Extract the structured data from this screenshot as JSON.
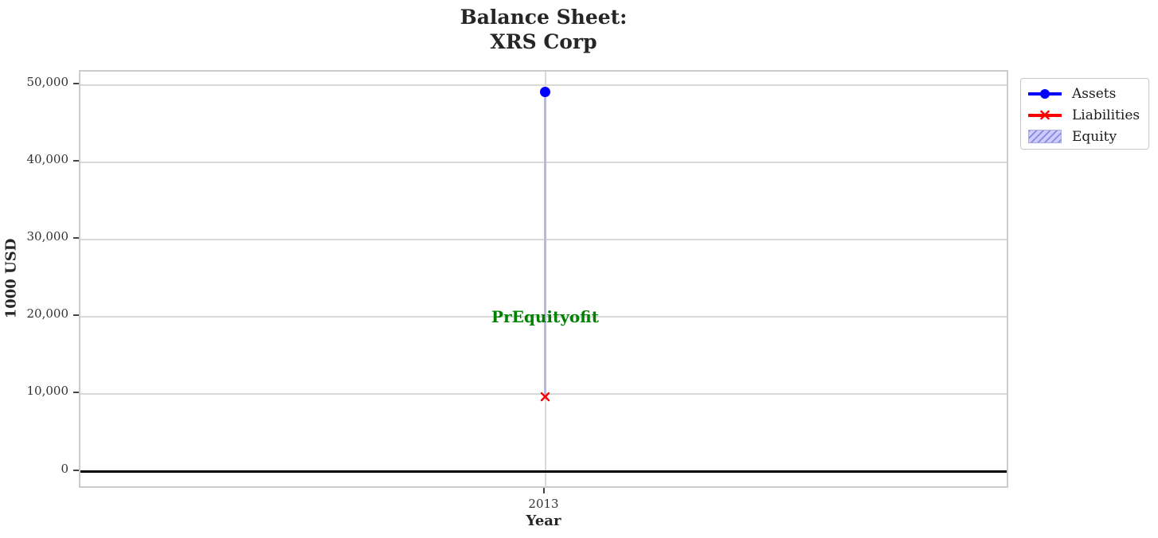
{
  "title": {
    "line1": "Balance Sheet:",
    "line2": "XRS Corp"
  },
  "x_axis": {
    "label": "Year"
  },
  "y_axis": {
    "label": "1000 USD"
  },
  "annotation": {
    "text": "PrEquityofit"
  },
  "legend": {
    "items": [
      {
        "label": "Assets"
      },
      {
        "label": "Liabilities"
      },
      {
        "label": "Equity"
      }
    ]
  },
  "chart_data": {
    "type": "line",
    "title": "Balance Sheet:\nXRS Corp",
    "xlabel": "Year",
    "ylabel": "1000 USD",
    "x": [
      2013
    ],
    "series": [
      {
        "name": "Assets",
        "type": "line",
        "marker": "circle",
        "color": "#0000ff",
        "values": [
          49100
        ]
      },
      {
        "name": "Liabilities",
        "type": "line",
        "marker": "x",
        "color": "#ff0000",
        "values": [
          9900
        ]
      },
      {
        "name": "Equity",
        "type": "bar",
        "fill": "#ccccff",
        "hatch": "/",
        "edge_color": "#aaaae0",
        "bottom": [
          9900
        ],
        "values": [
          39200
        ]
      }
    ],
    "annotations": [
      {
        "text": "PrEquityofit",
        "x": 2013,
        "y": 20000,
        "color": "#008000"
      }
    ],
    "xlim": [
      2012.5,
      2013.5
    ],
    "ylim": [
      -2300,
      51700
    ],
    "xticks": [
      {
        "value": 2013,
        "label": "2013"
      }
    ],
    "yticks": [
      {
        "value": 0,
        "label": "0"
      },
      {
        "value": 10000,
        "label": "10,000"
      },
      {
        "value": 20000,
        "label": "20,000"
      },
      {
        "value": 30000,
        "label": "30,000"
      },
      {
        "value": 40000,
        "label": "40,000"
      },
      {
        "value": 50000,
        "label": "50,000"
      }
    ],
    "grid": true,
    "zero_line": {
      "y": 0,
      "color": "#000000"
    },
    "legend_position": "outside-upper-right"
  },
  "colors": {
    "assets": "#0000ff",
    "liabilities": "#ff0000",
    "equity_fill": "#ccccff",
    "equity_hatch": "#8888dd",
    "annotation_green": "#008000",
    "grid": "#d9d9d9",
    "spine": "#cccccc",
    "zero_line": "#000000"
  }
}
